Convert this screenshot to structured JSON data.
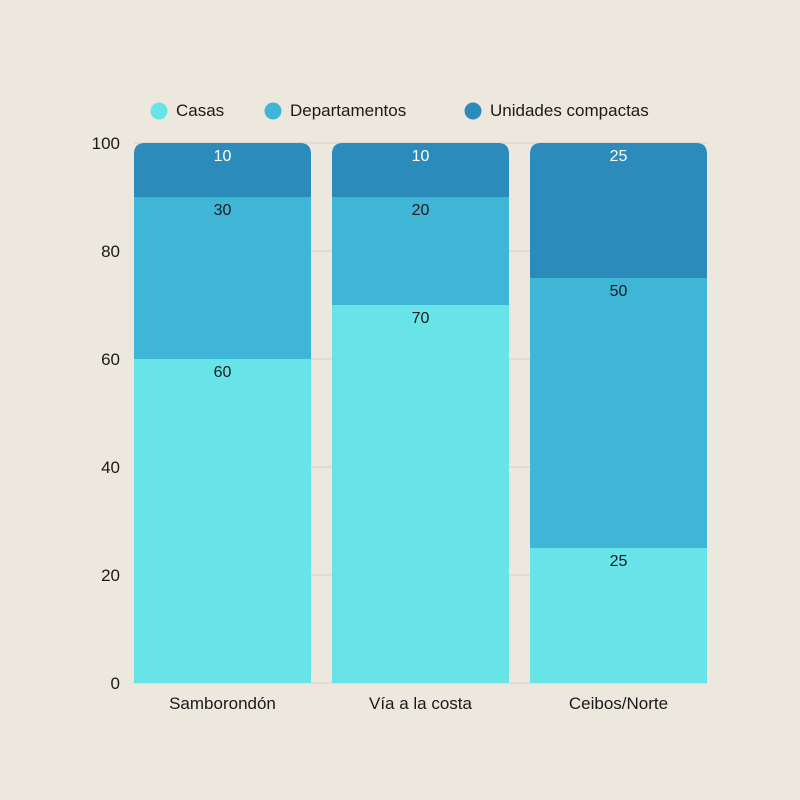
{
  "chart_data": {
    "type": "bar",
    "stacked": true,
    "categories": [
      "Samborondón",
      "Vía a la costa",
      "Ceibos/Norte"
    ],
    "series": [
      {
        "name": "Casas",
        "values": [
          60,
          70,
          25
        ],
        "color": "#68e4e8",
        "label_color": "#1a1a1a"
      },
      {
        "name": "Departamentos",
        "values": [
          30,
          20,
          50
        ],
        "color": "#40b6d6",
        "label_color": "#1a1a1a"
      },
      {
        "name": "Unidades compactas",
        "values": [
          10,
          10,
          25
        ],
        "color": "#2b8bbb",
        "label_color": "#ffffff"
      }
    ],
    "ylim": [
      0,
      100
    ],
    "yticks": [
      "0",
      "20",
      "40",
      "60",
      "80",
      "100"
    ],
    "ytick_values": [
      0,
      20,
      40,
      60,
      80,
      100
    ],
    "grid": true,
    "legend_position": "top"
  }
}
